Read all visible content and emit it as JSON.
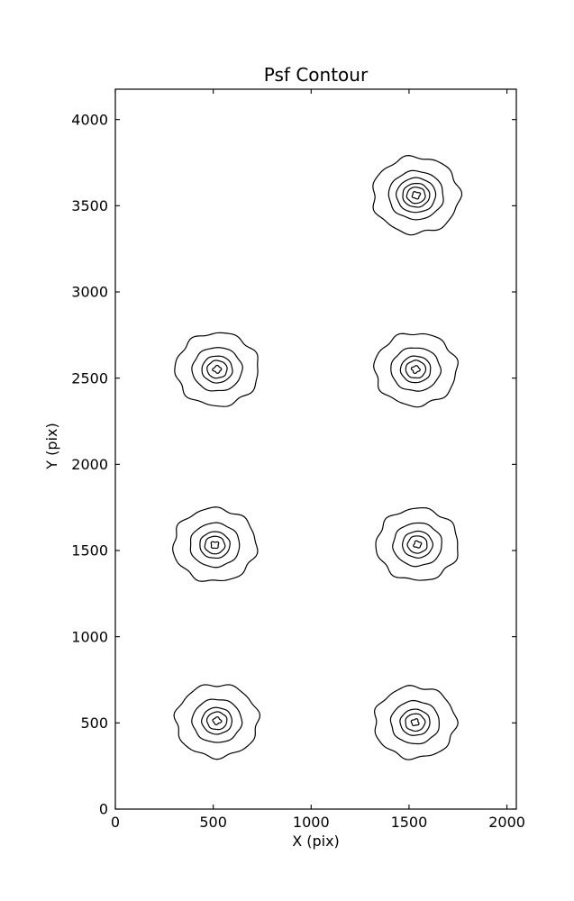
{
  "chart_data": {
    "type": "contour",
    "title": "Psf Contour",
    "xlabel": "X (pix)",
    "ylabel": "Y (pix)",
    "xlim": [
      0,
      2048
    ],
    "ylim": [
      0,
      4176
    ],
    "xticks": [
      0,
      500,
      1000,
      1500,
      2000
    ],
    "yticks": [
      0,
      500,
      1000,
      1500,
      2000,
      2500,
      3000,
      3500,
      4000
    ],
    "grid": false,
    "legend": "none",
    "line_color": "#000000",
    "background_color": "#ffffff",
    "blobs": [
      {
        "x": 519,
        "y": 512,
        "radii": [
          211,
          126,
          77,
          51,
          20
        ]
      },
      {
        "x": 1531,
        "y": 503,
        "radii": [
          208,
          124,
          76,
          50,
          19
        ]
      },
      {
        "x": 508,
        "y": 1532,
        "radii": [
          212,
          127,
          77,
          51,
          20
        ]
      },
      {
        "x": 1543,
        "y": 1535,
        "radii": [
          209,
          125,
          77,
          50,
          19
        ]
      },
      {
        "x": 520,
        "y": 2551,
        "radii": [
          212,
          127,
          78,
          51,
          20
        ]
      },
      {
        "x": 1534,
        "y": 2551,
        "radii": [
          210,
          126,
          77,
          51,
          20
        ]
      },
      {
        "x": 1536,
        "y": 3561,
        "radii": [
          222,
          140,
          100,
          69,
          47,
          20
        ]
      }
    ]
  }
}
